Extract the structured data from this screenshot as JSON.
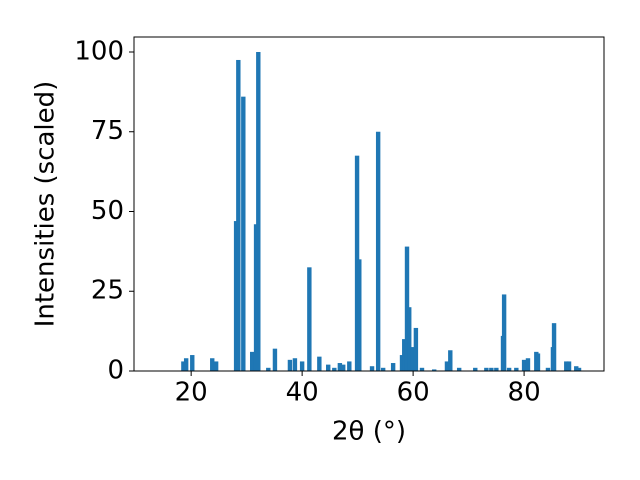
{
  "chart_data": {
    "type": "bar",
    "color": "#1f77b4",
    "x_label": "2θ (°)",
    "y_label": "Intensities (scaled)",
    "x": [
      18.6,
      19.1,
      20.2,
      23.8,
      24.5,
      28.1,
      28.5,
      29.4,
      31.0,
      31.7,
      32.1,
      33.9,
      35.1,
      37.8,
      38.7,
      40.0,
      41.3,
      43.1,
      44.7,
      45.8,
      46.8,
      47.4,
      48.5,
      49.9,
      50.3,
      52.6,
      53.7,
      54.6,
      56.4,
      58.0,
      58.4,
      58.9,
      59.3,
      60.0,
      60.5,
      61.6,
      63.8,
      66.1,
      66.7,
      68.3,
      71.2,
      73.2,
      74.1,
      75.0,
      76.2,
      76.4,
      77.3,
      78.6,
      80.0,
      80.7,
      82.2,
      82.5,
      84.3,
      85.2,
      85.4,
      87.6,
      88.1,
      89.4,
      89.9
    ],
    "values": [
      3,
      4,
      5,
      4,
      3,
      47,
      97.5,
      86,
      6,
      46,
      100,
      1,
      7,
      3.5,
      4,
      3,
      32.5,
      4.5,
      2,
      1,
      2.5,
      2,
      3,
      67.5,
      35,
      1.5,
      75,
      1,
      2.5,
      5,
      10,
      39,
      20,
      7.5,
      13.5,
      1,
      0.5,
      3,
      6.5,
      1,
      1,
      1,
      1,
      1,
      11,
      24,
      1,
      1,
      3.5,
      4,
      6,
      5.5,
      1,
      7.5,
      15,
      3,
      3,
      1.5,
      1
    ],
    "xlim": [
      9.7,
      94.4
    ],
    "xticks": [
      20,
      40,
      60,
      80
    ],
    "ylim": [
      0,
      104.7
    ],
    "yticks": [
      0,
      25,
      50,
      75,
      100
    ]
  }
}
